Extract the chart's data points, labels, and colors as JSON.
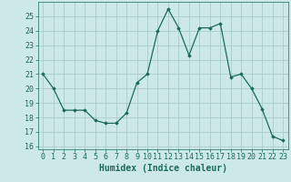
{
  "x": [
    0,
    1,
    2,
    3,
    4,
    5,
    6,
    7,
    8,
    9,
    10,
    11,
    12,
    13,
    14,
    15,
    16,
    17,
    18,
    19,
    20,
    21,
    22,
    23
  ],
  "y": [
    21,
    20,
    18.5,
    18.5,
    18.5,
    17.8,
    17.6,
    17.6,
    18.3,
    20.4,
    21.0,
    24.0,
    25.5,
    24.2,
    22.3,
    24.2,
    24.2,
    24.5,
    20.8,
    21.0,
    20.0,
    18.6,
    16.7,
    16.4
  ],
  "xlabel": "Humidex (Indice chaleur)",
  "xlim": [
    -0.5,
    23.5
  ],
  "ylim": [
    15.8,
    26.0
  ],
  "yticks": [
    16,
    17,
    18,
    19,
    20,
    21,
    22,
    23,
    24,
    25
  ],
  "xticks": [
    0,
    1,
    2,
    3,
    4,
    5,
    6,
    7,
    8,
    9,
    10,
    11,
    12,
    13,
    14,
    15,
    16,
    17,
    18,
    19,
    20,
    21,
    22,
    23
  ],
  "line_color": "#1a6b5a",
  "marker": "D",
  "marker_size": 1.8,
  "bg_color": "#cce8e8",
  "grid_color": "#aacccc",
  "xlabel_fontsize": 7,
  "tick_fontsize": 6
}
